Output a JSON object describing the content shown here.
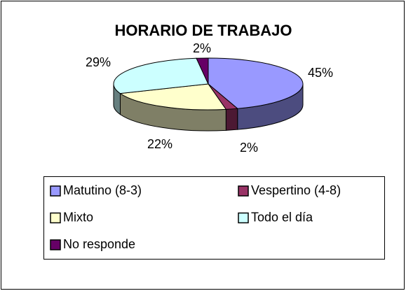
{
  "chart_data": {
    "type": "pie3d",
    "title": "HORARIO DE TRABAJO",
    "categories": [
      "Matutino (8-3)",
      "Vespertino (4-8)",
      "Mixto",
      "Todo el día",
      "No responde"
    ],
    "values": [
      45,
      2,
      22,
      29,
      2
    ],
    "value_labels": [
      "45%",
      "2%",
      "22%",
      "29%",
      "2%"
    ],
    "colors": [
      "#9999ff",
      "#993366",
      "#ffffcc",
      "#ccffff",
      "#660066"
    ],
    "legend": "bottom"
  }
}
